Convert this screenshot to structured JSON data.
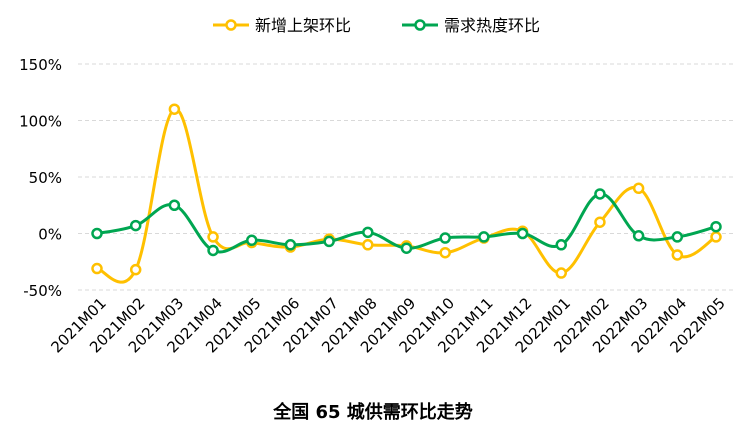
{
  "chart_data": {
    "type": "line",
    "title": "全国 65 城供需环比走势",
    "xlabel": "",
    "ylabel": "",
    "categories": [
      "2021M01",
      "2021M02",
      "2021M03",
      "2021M04",
      "2021M05",
      "2021M06",
      "2021M07",
      "2021M08",
      "2021M09",
      "2021M10",
      "2021M11",
      "2021M12",
      "2022M01",
      "2022M02",
      "2022M03",
      "2022M04",
      "2022M05"
    ],
    "y_ticks": [
      -50,
      0,
      50,
      100,
      150
    ],
    "y_tick_labels": [
      "-50%",
      "0%",
      "50%",
      "100%",
      "150%"
    ],
    "ylim": [
      -50,
      150
    ],
    "grid": true,
    "legend_position": "top",
    "series": [
      {
        "name": "新增上架环比",
        "color": "#FFC000",
        "values": [
          -31,
          -32,
          110,
          -3,
          -8,
          -12,
          -5,
          -10,
          -11,
          -17,
          -4,
          2,
          -35,
          10,
          40,
          -19,
          -3
        ]
      },
      {
        "name": "需求热度环比",
        "color": "#00A651",
        "values": [
          0,
          7,
          25,
          -15,
          -6,
          -10,
          -7,
          1,
          -13,
          -4,
          -3,
          0,
          -10,
          35,
          -2,
          -3,
          6
        ]
      }
    ]
  }
}
